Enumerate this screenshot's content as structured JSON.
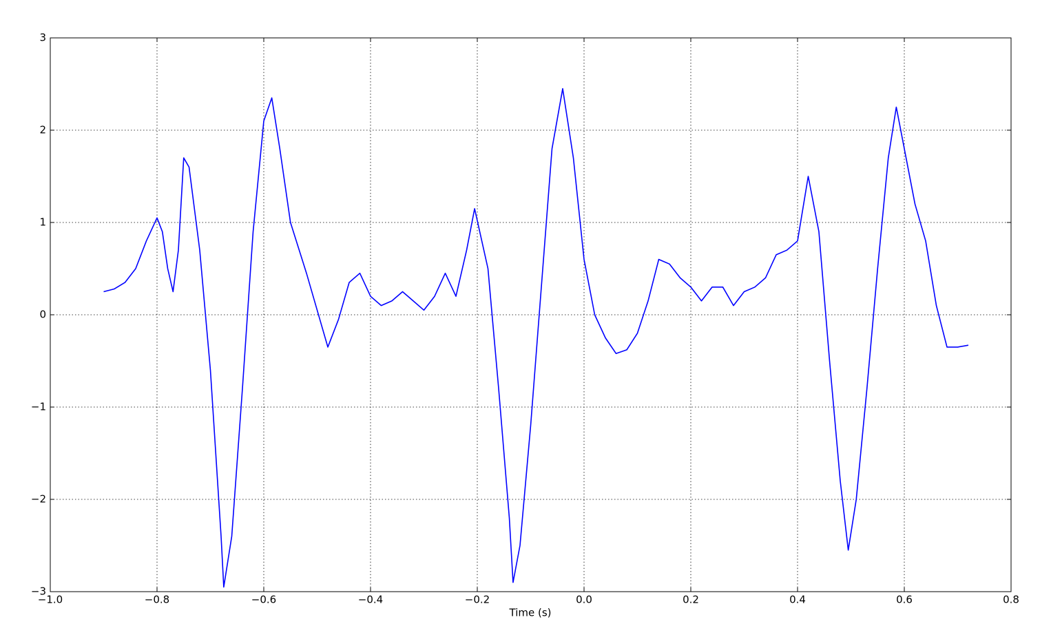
{
  "chart_data": {
    "type": "line",
    "xlabel": "Time (s)",
    "x": [
      -0.9,
      -0.88,
      -0.86,
      -0.84,
      -0.82,
      -0.8,
      -0.79,
      -0.78,
      -0.77,
      -0.76,
      -0.75,
      -0.74,
      -0.72,
      -0.7,
      -0.68,
      -0.675,
      -0.66,
      -0.64,
      -0.62,
      -0.6,
      -0.585,
      -0.57,
      -0.55,
      -0.52,
      -0.5,
      -0.48,
      -0.46,
      -0.44,
      -0.42,
      -0.4,
      -0.38,
      -0.36,
      -0.34,
      -0.32,
      -0.3,
      -0.28,
      -0.26,
      -0.24,
      -0.22,
      -0.205,
      -0.18,
      -0.16,
      -0.14,
      -0.133,
      -0.12,
      -0.1,
      -0.08,
      -0.06,
      -0.04,
      -0.02,
      0.0,
      0.02,
      0.04,
      0.06,
      0.08,
      0.1,
      0.12,
      0.14,
      0.16,
      0.18,
      0.2,
      0.22,
      0.24,
      0.26,
      0.28,
      0.3,
      0.32,
      0.34,
      0.36,
      0.38,
      0.4,
      0.42,
      0.44,
      0.46,
      0.48,
      0.495,
      0.51,
      0.53,
      0.55,
      0.57,
      0.585,
      0.6,
      0.62,
      0.64,
      0.66,
      0.68,
      0.7,
      0.72
    ],
    "series": [
      {
        "color": "#0000ff",
        "values": [
          0.25,
          0.28,
          0.35,
          0.5,
          0.8,
          1.05,
          0.9,
          0.5,
          0.25,
          0.7,
          1.7,
          1.6,
          0.7,
          -0.6,
          -2.4,
          -2.95,
          -2.4,
          -0.8,
          0.9,
          2.1,
          2.35,
          1.8,
          1.0,
          0.45,
          0.05,
          -0.35,
          -0.05,
          0.35,
          0.45,
          0.2,
          0.1,
          0.15,
          0.25,
          0.15,
          0.05,
          0.2,
          0.45,
          0.2,
          0.7,
          1.15,
          0.5,
          -0.8,
          -2.2,
          -2.9,
          -2.5,
          -1.2,
          0.3,
          1.8,
          2.45,
          1.7,
          0.6,
          0.0,
          -0.25,
          -0.42,
          -0.38,
          -0.2,
          0.15,
          0.6,
          0.55,
          0.4,
          0.3,
          0.15,
          0.3,
          0.3,
          0.1,
          0.25,
          0.3,
          0.4,
          0.65,
          0.7,
          0.8,
          1.5,
          0.9,
          -0.5,
          -1.8,
          -2.55,
          -2.0,
          -0.8,
          0.5,
          1.7,
          2.25,
          1.8,
          1.2,
          0.8,
          0.1,
          -0.35,
          -0.35,
          -0.33
        ]
      }
    ],
    "xlim": [
      -1.0,
      0.8
    ],
    "xticks": [
      {
        "value": -1.0,
        "label": "−1.0"
      },
      {
        "value": -0.8,
        "label": "−0.8"
      },
      {
        "value": -0.6,
        "label": "−0.6"
      },
      {
        "value": -0.4,
        "label": "−0.4"
      },
      {
        "value": -0.2,
        "label": "−0.2"
      },
      {
        "value": 0.0,
        "label": "0.0"
      },
      0.2,
      0.4,
      0.6,
      0.8
    ],
    "ylim": [
      -3,
      3
    ],
    "yticks": [
      {
        "value": -3,
        "label": "−3"
      },
      {
        "value": -2,
        "label": "−2"
      },
      {
        "value": -1,
        "label": "−1"
      },
      0,
      1,
      2,
      3
    ],
    "grid": true
  }
}
